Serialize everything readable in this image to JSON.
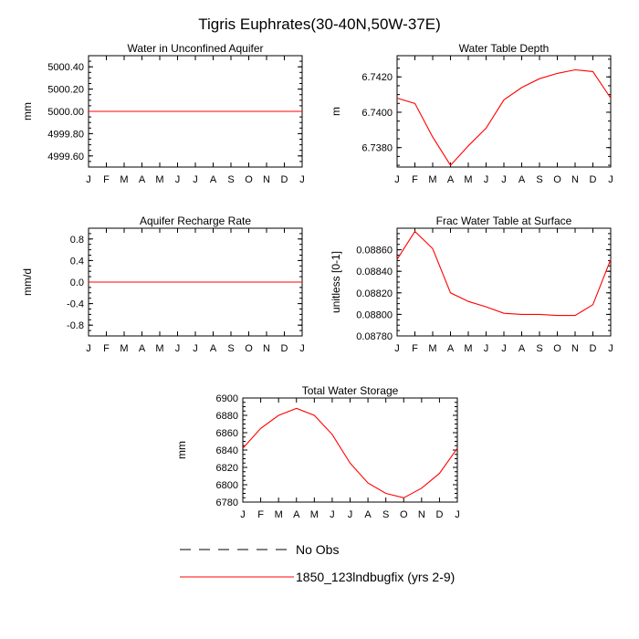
{
  "title": "Tigris Euphrates(30-40N,50W-37E)",
  "colors": {
    "model": "#ff0000",
    "obs": "#000000",
    "axis": "#000000"
  },
  "legend": {
    "obs_label": "No Obs",
    "model_label": "1850_123lndbugfix (yrs 2-9)"
  },
  "chart_data": [
    {
      "type": "line",
      "title": "Water in Unconfined Aquifer",
      "ylabel": "mm",
      "categories": [
        "J",
        "F",
        "M",
        "A",
        "M",
        "J",
        "J",
        "A",
        "S",
        "O",
        "N",
        "D",
        "J"
      ],
      "ylim": [
        4999.5,
        5000.5
      ],
      "yticks": [
        4999.6,
        4999.8,
        5000.0,
        5000.2,
        5000.4
      ],
      "ytick_labels": [
        "4999.60",
        "4999.80",
        "5000.00",
        "5000.20",
        "5000.40"
      ],
      "series": [
        {
          "name": "1850_123lndbugfix (yrs 2-9)",
          "values": [
            5000,
            5000,
            5000,
            5000,
            5000,
            5000,
            5000,
            5000,
            5000,
            5000,
            5000,
            5000,
            5000
          ]
        }
      ]
    },
    {
      "type": "line",
      "title": "Water Table Depth",
      "ylabel": "m",
      "categories": [
        "J",
        "F",
        "M",
        "A",
        "M",
        "J",
        "J",
        "A",
        "S",
        "O",
        "N",
        "D",
        "J"
      ],
      "ylim": [
        6.7369,
        6.7432
      ],
      "yticks": [
        6.738,
        6.74,
        6.742
      ],
      "ytick_labels": [
        "6.7380",
        "6.7400",
        "6.7420"
      ],
      "series": [
        {
          "name": "1850_123lndbugfix (yrs 2-9)",
          "values": [
            6.7408,
            6.7405,
            6.7386,
            6.737,
            6.7381,
            6.7391,
            6.7407,
            6.7414,
            6.7419,
            6.7422,
            6.7424,
            6.7423,
            6.7408
          ]
        }
      ]
    },
    {
      "type": "line",
      "title": "Aquifer Recharge Rate",
      "ylabel": "mm/d",
      "categories": [
        "J",
        "F",
        "M",
        "A",
        "M",
        "J",
        "J",
        "A",
        "S",
        "O",
        "N",
        "D",
        "J"
      ],
      "ylim": [
        -1.0,
        1.0
      ],
      "yticks": [
        -0.8,
        -0.4,
        0.0,
        0.4,
        0.8
      ],
      "ytick_labels": [
        "-0.8",
        "-0.4",
        "0.0",
        "0.4",
        "0.8"
      ],
      "series": [
        {
          "name": "1850_123lndbugfix (yrs 2-9)",
          "values": [
            0,
            0,
            0,
            0,
            0,
            0,
            0,
            0,
            0,
            0,
            0,
            0,
            0
          ]
        }
      ]
    },
    {
      "type": "line",
      "title": "Frac Water Table at Surface",
      "ylabel": "unitless [0-1]",
      "categories": [
        "J",
        "F",
        "M",
        "A",
        "M",
        "J",
        "J",
        "A",
        "S",
        "O",
        "N",
        "D",
        "J"
      ],
      "ylim": [
        0.0878,
        0.0888
      ],
      "yticks": [
        0.0878,
        0.088,
        0.0882,
        0.0884,
        0.0886
      ],
      "ytick_labels": [
        "0.08780",
        "0.08800",
        "0.08820",
        "0.08840",
        "0.08860"
      ],
      "series": [
        {
          "name": "1850_123lndbugfix (yrs 2-9)",
          "values": [
            0.08851,
            0.08877,
            0.08861,
            0.0882,
            0.08812,
            0.08807,
            0.08801,
            0.088,
            0.088,
            0.08799,
            0.08799,
            0.08809,
            0.08851
          ]
        }
      ]
    },
    {
      "type": "line",
      "title": "Total Water Storage",
      "ylabel": "mm",
      "categories": [
        "J",
        "F",
        "M",
        "A",
        "M",
        "J",
        "J",
        "A",
        "S",
        "O",
        "N",
        "D",
        "J"
      ],
      "ylim": [
        6780,
        6900
      ],
      "yticks": [
        6780,
        6800,
        6820,
        6840,
        6860,
        6880,
        6900
      ],
      "ytick_labels": [
        "6780",
        "6800",
        "6820",
        "6840",
        "6860",
        "6880",
        "6900"
      ],
      "series": [
        {
          "name": "1850_123lndbugfix (yrs 2-9)",
          "values": [
            6842,
            6865,
            6880,
            6888,
            6880,
            6858,
            6825,
            6802,
            6790,
            6785,
            6796,
            6813,
            6842
          ]
        }
      ]
    }
  ]
}
